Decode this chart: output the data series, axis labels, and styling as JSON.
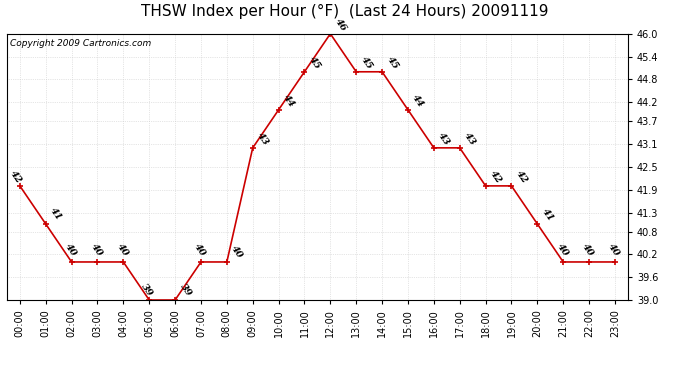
{
  "title": "THSW Index per Hour (°F)  (Last 24 Hours) 20091119",
  "copyright": "Copyright 2009 Cartronics.com",
  "hours": [
    "00:00",
    "01:00",
    "02:00",
    "03:00",
    "04:00",
    "05:00",
    "06:00",
    "07:00",
    "08:00",
    "09:00",
    "10:00",
    "11:00",
    "12:00",
    "13:00",
    "14:00",
    "15:00",
    "16:00",
    "17:00",
    "18:00",
    "19:00",
    "20:00",
    "21:00",
    "22:00",
    "23:00"
  ],
  "values": [
    42,
    41,
    40,
    40,
    40,
    39,
    39,
    40,
    40,
    43,
    44,
    45,
    46,
    45,
    45,
    44,
    43,
    43,
    42,
    42,
    41,
    40,
    40,
    40
  ],
  "ylim_min": 39.0,
  "ylim_max": 46.0,
  "yticks": [
    39.0,
    39.6,
    40.2,
    40.8,
    41.3,
    41.9,
    42.5,
    43.1,
    43.7,
    44.2,
    44.8,
    45.4,
    46.0
  ],
  "line_color": "#cc0000",
  "bg_color": "#ffffff",
  "grid_color": "#cccccc",
  "title_fontsize": 11,
  "tick_fontsize": 7,
  "copyright_fontsize": 6.5,
  "annot_fontsize": 7,
  "annot_rotation": -55
}
